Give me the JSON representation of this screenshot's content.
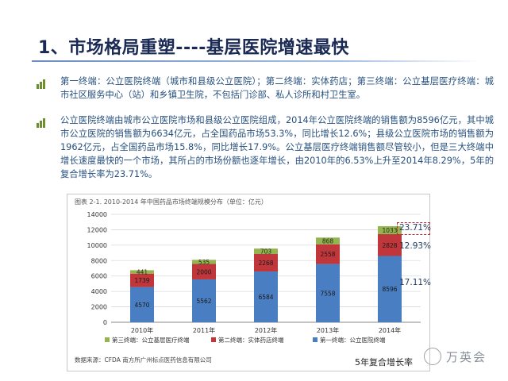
{
  "slide": {
    "title": "1、市场格局重塑----基层医院增速最快",
    "bullets": [
      "第一终端：公立医院终端（城市和县级公立医院）；第二终端：实体药店；第三终端：公立基层医疗终端：城市社区服务中心（站）和乡镇卫生院，不包括门诊部、私人诊所和村卫生室。",
      "公立医院终端由城市公立医院市场和县级公立医院组成，2014年公立医院终端的销售额为8596亿元，其中城市公立医院的销售额为6634亿元，占全国药品市场53.3%，同比增长12.6%；县级公立医院市场的销售额为1962亿元，占全国药品市场15.8%，同比增长17.9%。公立基层医疗终端销售额尽管较小，但是三大终端中增长速度最快的一个市场，其所占的市场份额也逐年增长，由2010年的6.53%上升至2014年8.29%，5年的复合增长率为23.71%。"
    ],
    "chart_caption": "图表 2-1. 2010-2014 年中国药品市场终端规模分布（单位：亿元）",
    "source": "数据来源：CFDA 南方所广州标点医药信息有限公司",
    "cagr_label": "5年复合增长率",
    "cagr_values": [
      "23.71%",
      "12.93%",
      "17.11%"
    ],
    "watermark": "万英会",
    "colors": {
      "terminal1": "#4a7ec2",
      "terminal2": "#c0363b",
      "terminal3": "#94b44f",
      "highlight": "#c0282f"
    }
  },
  "chart_data": {
    "type": "bar",
    "stacked": true,
    "categories": [
      "2010年",
      "2011年",
      "2012年",
      "2013年",
      "2014年"
    ],
    "series": [
      {
        "name": "第一终端：公立医院终端",
        "values": [
          4570,
          5562,
          6584,
          7558,
          8596
        ]
      },
      {
        "name": "第二终端：实体药店终端",
        "values": [
          1739,
          2000,
          2268,
          2558,
          2828
        ]
      },
      {
        "name": "第三终端：公立基层医疗终端",
        "values": [
          441,
          535,
          703,
          868,
          1033
        ]
      }
    ],
    "y_ticks": [
      "0",
      "2000",
      "4000",
      "6000",
      "8000",
      "10000",
      "12000",
      "14000"
    ],
    "ylim": [
      0,
      14000
    ],
    "grid": true,
    "legend": "bottom"
  }
}
